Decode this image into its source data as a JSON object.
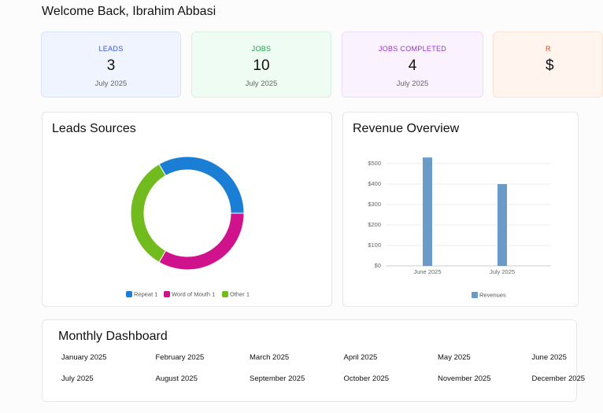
{
  "header": {
    "title": "Welcome Back, Ibrahim Abbasi"
  },
  "cards": [
    {
      "label": "LEADS",
      "value": 3,
      "period": "July 2025"
    },
    {
      "label": "JOBS",
      "value": 10,
      "period": "July 2025"
    },
    {
      "label": "JOBS COMPLETED",
      "value": 4,
      "period": "July 2025"
    },
    {
      "label": "R",
      "value": "$"
    }
  ],
  "chart_data": [
    {
      "type": "pie",
      "title": "Leads Sources",
      "categories": [
        "Repeat 1",
        "Word of Mouth 1",
        "Other 1"
      ],
      "values": [
        1,
        1,
        1
      ],
      "colors": [
        "#1a7fd4",
        "#d0138c",
        "#72bb1e"
      ]
    },
    {
      "type": "bar",
      "title": "Revenue Overview",
      "categories": [
        "June 2025",
        "July 2025"
      ],
      "series": [
        {
          "name": "Revenues",
          "color": "#6a9bc8",
          "values": [
            530,
            400
          ]
        }
      ],
      "ylim": [
        0,
        550
      ],
      "yticks": [
        {
          "value": 0,
          "label": "$0"
        },
        {
          "value": 100,
          "label": "$100"
        },
        {
          "value": 200,
          "label": "$200"
        },
        {
          "value": 300,
          "label": "$300"
        },
        {
          "value": 400,
          "label": "$400"
        },
        {
          "value": 500,
          "label": "$500"
        }
      ],
      "grid": true
    }
  ],
  "monthly_dashboard": {
    "title": "Monthly Dashboard",
    "months": [
      "January 2025",
      "February 2025",
      "March 2025",
      "April 2025",
      "May 2025",
      "June 2025",
      "July 2025",
      "August 2025",
      "September 2025",
      "October 2025",
      "November 2025",
      "December 2025"
    ]
  }
}
